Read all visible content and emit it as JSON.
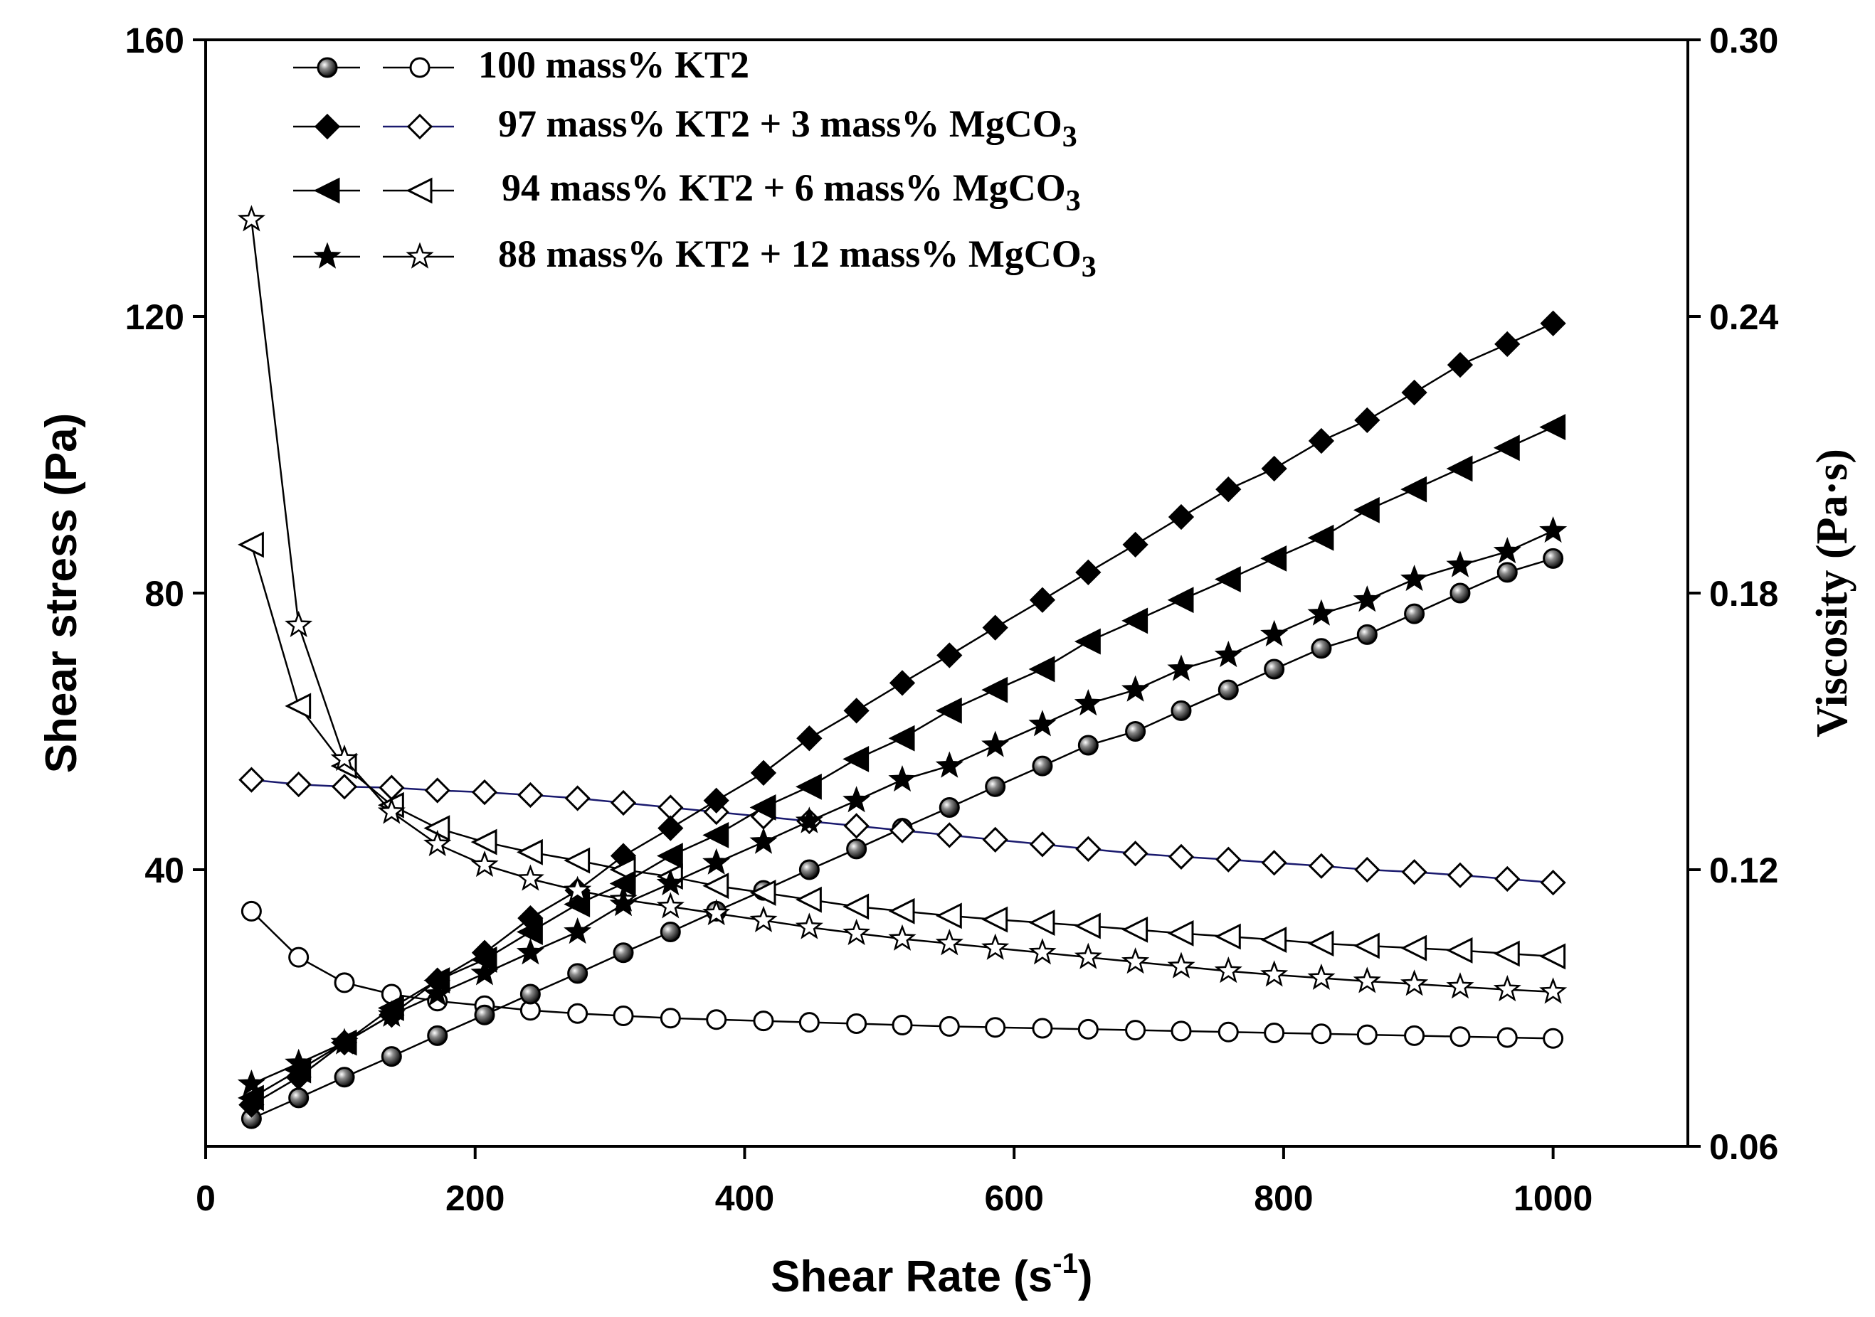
{
  "chart_data": {
    "type": "line",
    "xlabel": "Shear Rate (s",
    "xlabel_sup": "-1",
    "xlabel_close": ")",
    "ylabel_left": "Shear stress (Pa)",
    "ylabel_right": "Viscosity (Pa·s)",
    "xlim": [
      0,
      1100
    ],
    "ylim_left": [
      0,
      160
    ],
    "ylim_right": [
      0.06,
      0.3
    ],
    "x_ticks": [
      "0",
      "200",
      "400",
      "600",
      "800",
      "1000"
    ],
    "y_left_ticks": [
      "40",
      "80",
      "120",
      "160"
    ],
    "y_right_ticks": [
      "0.06",
      "0.12",
      "0.18",
      "0.24",
      "0.30"
    ],
    "grid": false,
    "legend_placement": "top-left",
    "x": [
      34,
      69,
      103,
      138,
      172,
      207,
      241,
      276,
      310,
      345,
      379,
      414,
      448,
      483,
      517,
      552,
      586,
      621,
      655,
      690,
      724,
      759,
      793,
      828,
      862,
      897,
      931,
      966,
      1000
    ],
    "series": [
      {
        "name": "100 mass% KT2",
        "marker": "sphere",
        "line_color": "#000000",
        "shear_stress": [
          4,
          7,
          10,
          13,
          16,
          19,
          22,
          25,
          28,
          31,
          34,
          37,
          40,
          43,
          46,
          49,
          52,
          55,
          58,
          60,
          63,
          66,
          69,
          72,
          74,
          77,
          80,
          83,
          85
        ],
        "viscosity": [
          0.111,
          0.101,
          0.0955,
          0.093,
          0.0915,
          0.0905,
          0.0895,
          0.0888,
          0.0883,
          0.0878,
          0.0875,
          0.0872,
          0.0869,
          0.0866,
          0.0863,
          0.086,
          0.0858,
          0.0856,
          0.0854,
          0.0852,
          0.085,
          0.0848,
          0.0846,
          0.0844,
          0.0842,
          0.084,
          0.0838,
          0.0836,
          0.0834
        ]
      },
      {
        "name_before": "97 mass% KT2 +  3 mass% MgCO",
        "name_sub": "3",
        "marker": "diamond",
        "line_color": "#1a1a6e",
        "shear_stress": [
          6,
          10,
          15,
          19,
          24,
          28,
          33,
          37,
          42,
          46,
          50,
          54,
          59,
          63,
          67,
          71,
          75,
          79,
          83,
          87,
          91,
          95,
          98,
          102,
          105,
          109,
          113,
          116,
          119
        ],
        "viscosity": [
          0.1395,
          0.1385,
          0.138,
          0.1378,
          0.1372,
          0.1368,
          0.1362,
          0.1355,
          0.1345,
          0.1335,
          0.1325,
          0.1315,
          0.1305,
          0.1295,
          0.1285,
          0.1275,
          0.1265,
          0.1255,
          0.1245,
          0.1235,
          0.1228,
          0.1222,
          0.1215,
          0.1208,
          0.12,
          0.1195,
          0.1188,
          0.118,
          0.1172
        ]
      },
      {
        "name_before": "94 mass% KT2 +  6 mass% MgCO",
        "name_sub": "3",
        "marker": "triangle-left",
        "line_color": "#000000",
        "shear_stress": [
          7,
          11,
          15,
          20,
          24,
          27,
          31,
          35,
          38,
          42,
          45,
          49,
          52,
          56,
          59,
          63,
          66,
          69,
          73,
          76,
          79,
          82,
          85,
          88,
          92,
          95,
          98,
          101,
          104
        ],
        "viscosity": [
          0.1905,
          0.1555,
          0.1425,
          0.134,
          0.129,
          0.126,
          0.1238,
          0.122,
          0.12,
          0.1185,
          0.1165,
          0.115,
          0.1135,
          0.112,
          0.111,
          0.11,
          0.1092,
          0.1085,
          0.1078,
          0.107,
          0.1062,
          0.1055,
          0.1048,
          0.104,
          0.1035,
          0.103,
          0.1025,
          0.1018,
          0.1012
        ]
      },
      {
        "name_before": "88 mass% KT2 + 12 mass% MgCO",
        "name_sub": "3",
        "marker": "star",
        "line_color": "#000000",
        "shear_stress": [
          9,
          12,
          15,
          19,
          22,
          25,
          28,
          31,
          35,
          38,
          41,
          44,
          47,
          50,
          53,
          55,
          58,
          61,
          64,
          66,
          69,
          71,
          74,
          77,
          79,
          82,
          84,
          86,
          89
        ],
        "viscosity": [
          0.261,
          0.173,
          0.144,
          0.1325,
          0.1255,
          0.121,
          0.118,
          0.1155,
          0.1135,
          0.112,
          0.1105,
          0.109,
          0.1075,
          0.1062,
          0.105,
          0.104,
          0.103,
          0.102,
          0.101,
          0.1,
          0.099,
          0.098,
          0.0972,
          0.0965,
          0.0958,
          0.0952,
          0.0946,
          0.094,
          0.0935
        ]
      }
    ]
  }
}
